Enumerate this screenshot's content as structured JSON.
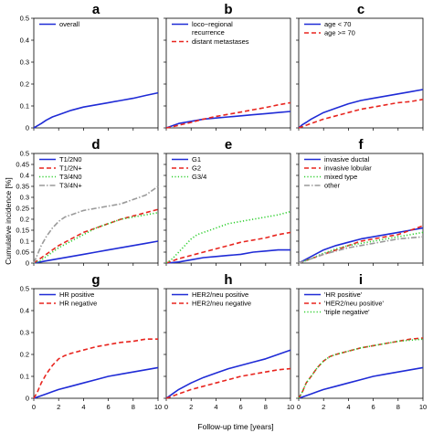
{
  "figure": {
    "xlabel": "Follow-up time [years]",
    "ylabel": "Cumulative incidence [%]"
  },
  "chart_data": [
    {
      "panel": "a",
      "type": "line",
      "xlim": [
        0,
        10
      ],
      "ylim": [
        0,
        0.5
      ],
      "xticks": [
        0,
        2,
        4,
        6,
        8,
        10
      ],
      "yticks": [
        0,
        0.1,
        0.2,
        0.3,
        0.4,
        0.5
      ],
      "show_x_ticklabels": false,
      "show_y_ticklabels": true,
      "legend": "top-left",
      "series": [
        {
          "name": "overall",
          "color": "#1f2bd6",
          "dash": "solid",
          "x": [
            0,
            0.3,
            0.6,
            1,
            1.5,
            2,
            3,
            4,
            5,
            6,
            7,
            8,
            9,
            10
          ],
          "y": [
            0,
            0.01,
            0.02,
            0.035,
            0.05,
            0.06,
            0.08,
            0.095,
            0.105,
            0.115,
            0.125,
            0.135,
            0.148,
            0.16
          ]
        }
      ]
    },
    {
      "panel": "b",
      "type": "line",
      "xlim": [
        0,
        10
      ],
      "ylim": [
        0,
        0.5
      ],
      "xticks": [
        0,
        2,
        4,
        6,
        8,
        10
      ],
      "yticks": [
        0,
        0.1,
        0.2,
        0.3,
        0.4,
        0.5
      ],
      "show_x_ticklabels": false,
      "show_y_ticklabels": false,
      "legend": "top-left",
      "series": [
        {
          "name": "loco−regional\nrecurrence",
          "color": "#1f2bd6",
          "dash": "solid",
          "x": [
            0,
            0.5,
            1,
            2,
            3,
            4,
            5,
            6,
            7,
            8,
            9,
            10
          ],
          "y": [
            0,
            0.01,
            0.02,
            0.03,
            0.04,
            0.045,
            0.05,
            0.055,
            0.06,
            0.065,
            0.07,
            0.075
          ]
        },
        {
          "name": "distant metastases",
          "color": "#e8251f",
          "dash": "dashed",
          "x": [
            0,
            0.5,
            1,
            2,
            3,
            4,
            5,
            6,
            7,
            8,
            9,
            10
          ],
          "y": [
            0,
            0.005,
            0.012,
            0.025,
            0.04,
            0.052,
            0.062,
            0.072,
            0.083,
            0.093,
            0.105,
            0.115
          ]
        }
      ]
    },
    {
      "panel": "c",
      "type": "line",
      "xlim": [
        0,
        10
      ],
      "ylim": [
        0,
        0.5
      ],
      "xticks": [
        0,
        2,
        4,
        6,
        8,
        10
      ],
      "yticks": [
        0,
        0.1,
        0.2,
        0.3,
        0.4,
        0.5
      ],
      "show_x_ticklabels": false,
      "show_y_ticklabels": false,
      "legend": "top-left",
      "series": [
        {
          "name": "age < 70",
          "color": "#1f2bd6",
          "dash": "solid",
          "x": [
            0,
            0.3,
            0.6,
            1,
            1.5,
            2,
            3,
            4,
            5,
            6,
            7,
            8,
            9,
            10
          ],
          "y": [
            0,
            0.015,
            0.025,
            0.04,
            0.055,
            0.07,
            0.09,
            0.11,
            0.125,
            0.135,
            0.145,
            0.155,
            0.165,
            0.175
          ]
        },
        {
          "name": "age >= 70",
          "color": "#e8251f",
          "dash": "dashed",
          "x": [
            0,
            0.5,
            1,
            1.5,
            2,
            3,
            4,
            5,
            6,
            7,
            8,
            9,
            10
          ],
          "y": [
            0,
            0.01,
            0.02,
            0.03,
            0.04,
            0.055,
            0.07,
            0.085,
            0.095,
            0.105,
            0.115,
            0.12,
            0.13
          ]
        }
      ]
    },
    {
      "panel": "d",
      "type": "line",
      "xlim": [
        0,
        10
      ],
      "ylim": [
        0,
        0.5
      ],
      "xticks": [
        0,
        2,
        4,
        6,
        8,
        10
      ],
      "yticks": [
        0,
        0.05,
        0.1,
        0.15,
        0.2,
        0.25,
        0.3,
        0.35,
        0.4,
        0.45,
        0.5
      ],
      "show_x_ticklabels": false,
      "show_y_ticklabels": true,
      "legend": "top-left",
      "series": [
        {
          "name": "T1/2N0",
          "color": "#1f2bd6",
          "dash": "solid",
          "x": [
            0,
            0.5,
            1,
            2,
            3,
            4,
            5,
            6,
            7,
            8,
            9,
            10
          ],
          "y": [
            0,
            0.005,
            0.01,
            0.02,
            0.03,
            0.04,
            0.05,
            0.06,
            0.07,
            0.08,
            0.09,
            0.1
          ]
        },
        {
          "name": "T1/2N+",
          "color": "#e8251f",
          "dash": "dashed",
          "x": [
            0,
            0.5,
            1,
            1.5,
            2,
            3,
            4,
            5,
            6,
            7,
            8,
            9,
            10
          ],
          "y": [
            0,
            0.02,
            0.04,
            0.06,
            0.08,
            0.11,
            0.14,
            0.16,
            0.18,
            0.2,
            0.215,
            0.23,
            0.245
          ]
        },
        {
          "name": "T3/4N0",
          "color": "#2fcf2f",
          "dash": "dotted",
          "x": [
            0,
            0.5,
            1,
            1.5,
            2,
            3,
            4,
            5,
            6,
            7,
            8,
            9,
            10
          ],
          "y": [
            0,
            0.01,
            0.03,
            0.05,
            0.07,
            0.1,
            0.13,
            0.16,
            0.18,
            0.2,
            0.21,
            0.22,
            0.23
          ]
        },
        {
          "name": "T3/4N+",
          "color": "#9a9a9a",
          "dash": "dashdot",
          "x": [
            0,
            0.3,
            0.6,
            1,
            1.5,
            2,
            2.5,
            3,
            4,
            5,
            6,
            7,
            8,
            9,
            10
          ],
          "y": [
            0,
            0.04,
            0.08,
            0.12,
            0.16,
            0.19,
            0.21,
            0.22,
            0.24,
            0.25,
            0.26,
            0.27,
            0.29,
            0.31,
            0.35
          ]
        }
      ]
    },
    {
      "panel": "e",
      "type": "line",
      "xlim": [
        0,
        10
      ],
      "ylim": [
        0,
        0.5
      ],
      "xticks": [
        0,
        2,
        4,
        6,
        8,
        10
      ],
      "yticks": [
        0,
        0.05,
        0.1,
        0.15,
        0.2,
        0.25,
        0.3,
        0.35,
        0.4,
        0.45,
        0.5
      ],
      "show_x_ticklabels": false,
      "show_y_ticklabels": false,
      "legend": "top-left",
      "series": [
        {
          "name": "G1",
          "color": "#1f2bd6",
          "dash": "solid",
          "x": [
            0,
            1,
            2,
            3,
            4,
            5,
            6,
            7,
            8,
            9,
            10
          ],
          "y": [
            0,
            0.005,
            0.015,
            0.025,
            0.03,
            0.035,
            0.04,
            0.05,
            0.055,
            0.06,
            0.06
          ]
        },
        {
          "name": "G2",
          "color": "#e8251f",
          "dash": "dashed",
          "x": [
            0,
            0.5,
            1,
            2,
            3,
            4,
            5,
            6,
            7,
            8,
            9,
            10
          ],
          "y": [
            0,
            0.01,
            0.02,
            0.035,
            0.05,
            0.065,
            0.08,
            0.095,
            0.105,
            0.115,
            0.13,
            0.14
          ]
        },
        {
          "name": "G3/4",
          "color": "#2fcf2f",
          "dash": "dotted",
          "x": [
            0,
            0.5,
            1,
            1.5,
            2,
            2.5,
            3,
            4,
            5,
            6,
            7,
            8,
            9,
            10
          ],
          "y": [
            0,
            0.02,
            0.05,
            0.08,
            0.11,
            0.13,
            0.14,
            0.16,
            0.18,
            0.19,
            0.2,
            0.21,
            0.22,
            0.235
          ]
        }
      ]
    },
    {
      "panel": "f",
      "type": "line",
      "xlim": [
        0,
        10
      ],
      "ylim": [
        0,
        0.5
      ],
      "xticks": [
        0,
        2,
        4,
        6,
        8,
        10
      ],
      "yticks": [
        0,
        0.05,
        0.1,
        0.15,
        0.2,
        0.25,
        0.3,
        0.35,
        0.4,
        0.45,
        0.5
      ],
      "show_x_ticklabels": false,
      "show_y_ticklabels": false,
      "legend": "top-left",
      "series": [
        {
          "name": "invasive ductal",
          "color": "#1f2bd6",
          "dash": "solid",
          "x": [
            0,
            0.5,
            1,
            1.5,
            2,
            3,
            4,
            5,
            6,
            7,
            8,
            9,
            10
          ],
          "y": [
            0,
            0.015,
            0.03,
            0.045,
            0.06,
            0.08,
            0.095,
            0.11,
            0.12,
            0.13,
            0.14,
            0.15,
            0.16
          ]
        },
        {
          "name": "invasive lobular",
          "color": "#e8251f",
          "dash": "dashed",
          "x": [
            0,
            1,
            2,
            3,
            4,
            5,
            6,
            7,
            8,
            9,
            10
          ],
          "y": [
            0,
            0.02,
            0.04,
            0.06,
            0.08,
            0.1,
            0.11,
            0.12,
            0.13,
            0.15,
            0.17
          ]
        },
        {
          "name": "mixed type",
          "color": "#2fcf2f",
          "dash": "dotted",
          "x": [
            0,
            1,
            2,
            3,
            4,
            5,
            6,
            7,
            8,
            9,
            10
          ],
          "y": [
            0,
            0.02,
            0.045,
            0.065,
            0.08,
            0.09,
            0.1,
            0.11,
            0.12,
            0.13,
            0.14
          ]
        },
        {
          "name": "other",
          "color": "#9a9a9a",
          "dash": "dashdot",
          "x": [
            0,
            1,
            2,
            3,
            4,
            5,
            6,
            7,
            8,
            9,
            10
          ],
          "y": [
            0,
            0.02,
            0.04,
            0.055,
            0.07,
            0.08,
            0.09,
            0.1,
            0.11,
            0.115,
            0.12
          ]
        }
      ]
    },
    {
      "panel": "g",
      "type": "line",
      "xlim": [
        0,
        10
      ],
      "ylim": [
        0,
        0.5
      ],
      "xticks": [
        0,
        2,
        4,
        6,
        8,
        10
      ],
      "yticks": [
        0,
        0.1,
        0.2,
        0.3,
        0.4,
        0.5
      ],
      "show_x_ticklabels": true,
      "show_y_ticklabels": true,
      "legend": "top-left",
      "series": [
        {
          "name": "HR positive",
          "color": "#1f2bd6",
          "dash": "solid",
          "x": [
            0,
            0.5,
            1,
            1.5,
            2,
            3,
            4,
            5,
            6,
            7,
            8,
            9,
            10
          ],
          "y": [
            0,
            0.01,
            0.02,
            0.03,
            0.04,
            0.055,
            0.07,
            0.085,
            0.1,
            0.11,
            0.12,
            0.13,
            0.14
          ]
        },
        {
          "name": "HR negative",
          "color": "#e8251f",
          "dash": "dashed",
          "x": [
            0,
            0.3,
            0.6,
            1,
            1.5,
            2,
            2.5,
            3,
            4,
            5,
            6,
            7,
            8,
            9,
            10
          ],
          "y": [
            0,
            0.03,
            0.07,
            0.11,
            0.15,
            0.18,
            0.195,
            0.205,
            0.22,
            0.235,
            0.245,
            0.255,
            0.26,
            0.27,
            0.27
          ]
        }
      ]
    },
    {
      "panel": "h",
      "type": "line",
      "xlim": [
        0,
        10
      ],
      "ylim": [
        0,
        0.5
      ],
      "xticks": [
        0,
        2,
        4,
        6,
        8,
        10
      ],
      "yticks": [
        0,
        0.1,
        0.2,
        0.3,
        0.4,
        0.5
      ],
      "show_x_ticklabels": true,
      "show_y_ticklabels": false,
      "legend": "top-left",
      "series": [
        {
          "name": "HER2/neu positive",
          "color": "#1f2bd6",
          "dash": "solid",
          "x": [
            0,
            0.5,
            1,
            1.5,
            2,
            3,
            4,
            5,
            6,
            7,
            8,
            9,
            10
          ],
          "y": [
            0,
            0.02,
            0.04,
            0.055,
            0.07,
            0.095,
            0.115,
            0.135,
            0.15,
            0.165,
            0.18,
            0.2,
            0.22
          ]
        },
        {
          "name": "HER2/neu negative",
          "color": "#e8251f",
          "dash": "dashed",
          "x": [
            0,
            0.5,
            1,
            2,
            3,
            4,
            5,
            6,
            7,
            8,
            9,
            10
          ],
          "y": [
            0,
            0.01,
            0.02,
            0.04,
            0.055,
            0.07,
            0.085,
            0.1,
            0.11,
            0.12,
            0.13,
            0.135
          ]
        }
      ]
    },
    {
      "panel": "i",
      "type": "line",
      "xlim": [
        0,
        10
      ],
      "ylim": [
        0,
        0.5
      ],
      "xticks": [
        0,
        2,
        4,
        6,
        8,
        10
      ],
      "yticks": [
        0,
        0.1,
        0.2,
        0.3,
        0.4,
        0.5
      ],
      "show_x_ticklabels": true,
      "show_y_ticklabels": false,
      "legend": "top-left",
      "series": [
        {
          "name": "'HR positive'",
          "color": "#1f2bd6",
          "dash": "solid",
          "x": [
            0,
            0.5,
            1,
            1.5,
            2,
            3,
            4,
            5,
            6,
            7,
            8,
            9,
            10
          ],
          "y": [
            0,
            0.01,
            0.02,
            0.03,
            0.04,
            0.055,
            0.07,
            0.085,
            0.1,
            0.11,
            0.12,
            0.13,
            0.14
          ]
        },
        {
          "name": "'HER2/neu positive'",
          "color": "#e8251f",
          "dash": "dashed",
          "x": [
            0,
            0.3,
            0.6,
            1,
            1.5,
            2,
            2.5,
            3,
            4,
            5,
            6,
            7,
            8,
            9,
            10
          ],
          "y": [
            0,
            0.03,
            0.07,
            0.1,
            0.14,
            0.17,
            0.19,
            0.2,
            0.215,
            0.23,
            0.24,
            0.25,
            0.26,
            0.27,
            0.275
          ]
        },
        {
          "name": "'triple negative'",
          "color": "#2fcf2f",
          "dash": "dotted",
          "x": [
            0,
            0.3,
            0.6,
            1,
            1.5,
            2,
            2.5,
            3,
            4,
            5,
            6,
            7,
            8,
            9,
            10
          ],
          "y": [
            0,
            0.03,
            0.07,
            0.1,
            0.14,
            0.17,
            0.19,
            0.2,
            0.215,
            0.23,
            0.24,
            0.25,
            0.26,
            0.265,
            0.27
          ]
        }
      ]
    }
  ]
}
